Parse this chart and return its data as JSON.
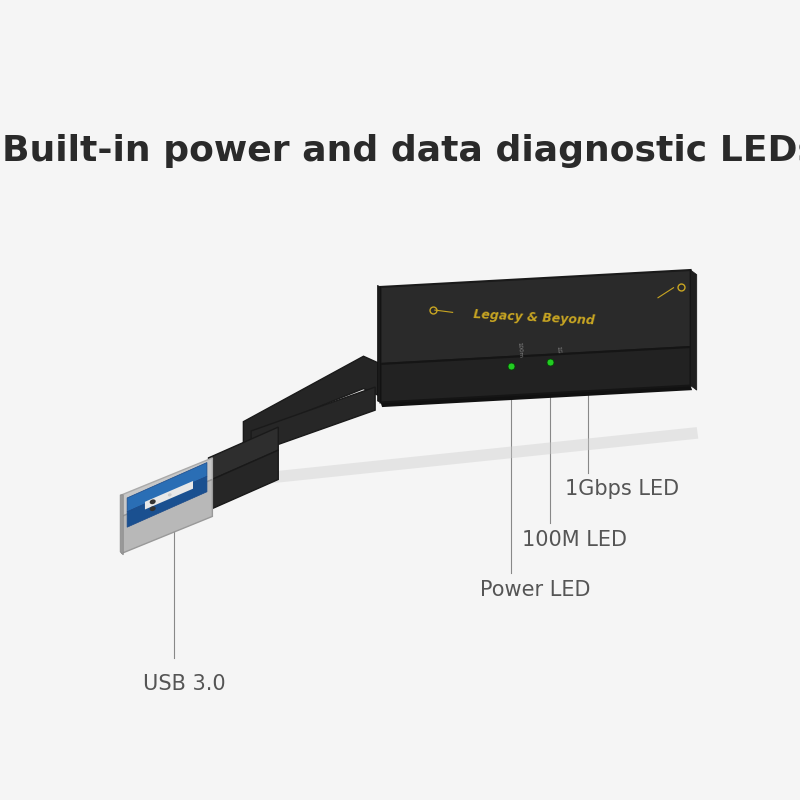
{
  "title": "Built-in power and data diagnostic LEDs",
  "title_fontsize": 26,
  "title_color": "#2a2a2a",
  "title_fontweight": "bold",
  "bg_color": "#f5f5f5",
  "label_color": "#555555",
  "label_fontsize": 15,
  "line_color": "#888888",
  "line_width": 0.8,
  "device_dark": "#1e1e1e",
  "device_mid": "#282828",
  "device_light": "#323232",
  "device_top": "#2c2c2c",
  "cable_color": "#252525",
  "usb_blue": "#2a6eb5",
  "usb_silver": "#b0b0b0",
  "led_green": "#22cc22",
  "gold_text": "#c8a522",
  "usb_label": "USB 3.0",
  "power_label": "Power LED",
  "m100_label": "100M LED",
  "gbps_label": "1Gbps LED"
}
